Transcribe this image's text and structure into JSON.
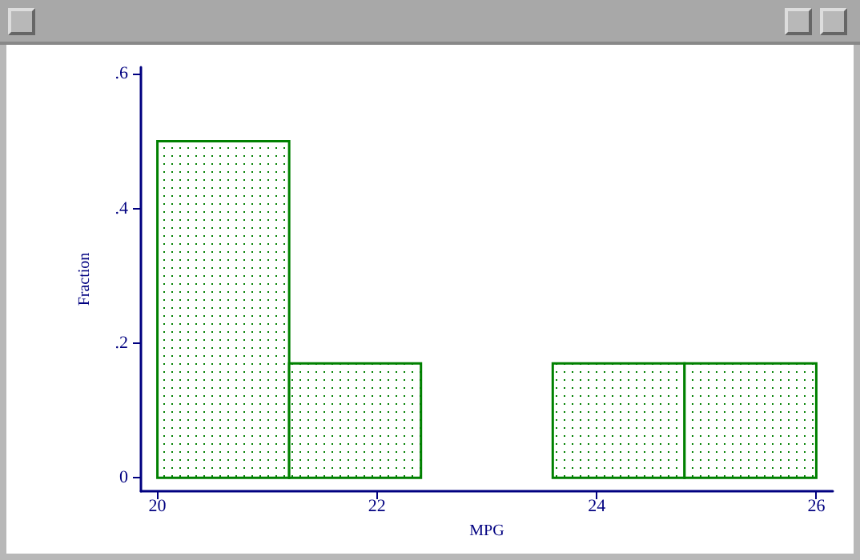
{
  "chart_data": {
    "type": "histogram",
    "xlabel": "MPG",
    "ylabel": "Fraction",
    "bins": [
      20,
      21.2,
      22.4,
      23.6,
      24.8,
      26
    ],
    "values": [
      0.5,
      0.17,
      0,
      0.17,
      0.17
    ],
    "color": "#008000",
    "xlim": [
      19.85,
      26.15
    ],
    "ylim": [
      -0.02,
      0.61
    ],
    "xticks": [
      20,
      22,
      24,
      26
    ],
    "yticks": [
      {
        "value": 0,
        "label": "0"
      },
      {
        "value": 0.2,
        "label": ".2"
      },
      {
        "value": 0.4,
        "label": ".4"
      },
      {
        "value": 0.6,
        "label": ".6"
      }
    ],
    "grid": false
  }
}
